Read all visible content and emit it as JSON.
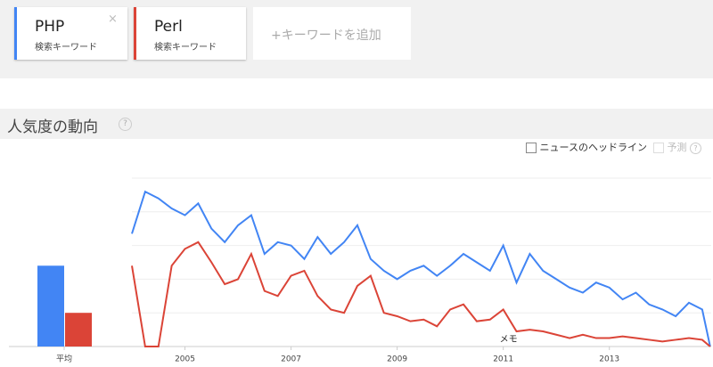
{
  "cards": [
    {
      "subtitle": "検索キーワード"
    },
    {
      "subtitle": "検索キーワード"
    }
  ],
  "close_icon": "×",
  "add_keyword": "+キーワードを追加",
  "section_title": "人気度の動向",
  "help_icon": "?",
  "options": [
    {
      "label": "ニュースのヘッドライン"
    },
    {
      "label": "予測"
    }
  ],
  "chart_data": {
    "type": "line",
    "x": [
      2004,
      2004.25,
      2004.5,
      2004.75,
      2005,
      2005.25,
      2005.5,
      2005.75,
      2006,
      2006.25,
      2006.5,
      2006.75,
      2007,
      2007.25,
      2007.5,
      2007.75,
      2008,
      2008.25,
      2008.5,
      2008.75,
      2009,
      2009.25,
      2009.5,
      2009.75,
      2010,
      2010.25,
      2010.5,
      2010.75,
      2011,
      2011.25,
      2011.5,
      2011.75,
      2012,
      2012.25,
      2012.5,
      2012.75,
      2013,
      2013.25,
      2013.5,
      2013.75,
      2014,
      2014.25,
      2014.5,
      2014.75,
      2014.9
    ],
    "series": [
      {
        "name": "PHP",
        "color": "#4285f4",
        "values": [
          67,
          92,
          88,
          82,
          78,
          85,
          70,
          62,
          72,
          78,
          55,
          62,
          60,
          52,
          65,
          55,
          62,
          72,
          52,
          45,
          40,
          45,
          48,
          42,
          48,
          55,
          50,
          45,
          60,
          38,
          55,
          45,
          40,
          35,
          32,
          38,
          35,
          28,
          32,
          25,
          22,
          18,
          26,
          22,
          0
        ],
        "average": 48
      },
      {
        "name": "Perl",
        "color": "#db4437",
        "values": [
          48,
          0,
          0,
          48,
          58,
          62,
          50,
          37,
          40,
          55,
          33,
          30,
          42,
          45,
          30,
          22,
          20,
          36,
          42,
          20,
          18,
          15,
          16,
          12,
          22,
          25,
          15,
          16,
          22,
          9,
          10,
          9,
          7,
          5,
          7,
          5,
          5,
          6,
          5,
          4,
          3,
          4,
          5,
          4,
          0
        ],
        "average": 20
      }
    ],
    "average_label": "平均",
    "xlim": [
      2004,
      2014.92
    ],
    "xticks": [
      2005,
      2007,
      2009,
      2011,
      2013
    ],
    "ylim": [
      0,
      100
    ],
    "yticks": [
      20,
      40,
      60,
      80,
      100
    ],
    "grid": true,
    "annotation": {
      "x": 2011.1,
      "label": "メモ"
    }
  }
}
